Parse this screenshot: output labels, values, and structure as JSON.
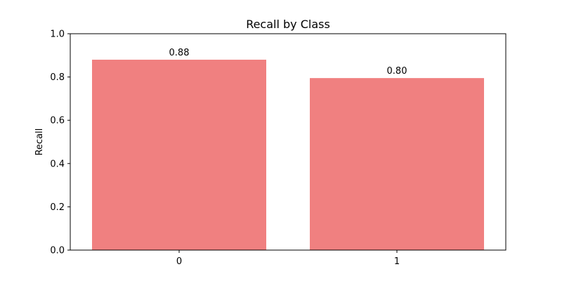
{
  "chart_data": {
    "type": "bar",
    "title": "Recall by Class",
    "xlabel": "",
    "ylabel": "Recall",
    "categories": [
      "0",
      "1"
    ],
    "values": [
      0.88,
      0.795
    ],
    "data_labels": [
      "0.88",
      "0.80"
    ],
    "ylim": [
      0,
      1.0
    ],
    "yticks": [
      0.0,
      0.2,
      0.4,
      0.6,
      0.8,
      1.0
    ],
    "ytick_labels": [
      "0.0",
      "0.2",
      "0.4",
      "0.6",
      "0.8",
      "1.0"
    ],
    "grid": false,
    "legend": "none",
    "bar_color": "#f08080"
  }
}
